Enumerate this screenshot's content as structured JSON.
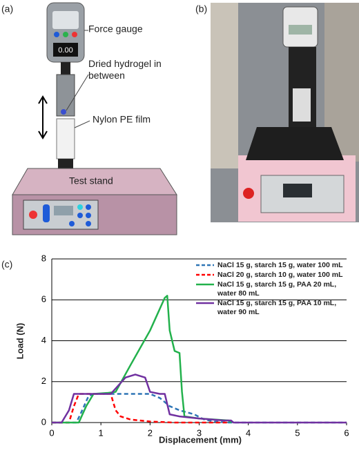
{
  "panels": {
    "a": "(a)",
    "b": "(b)",
    "c": "(c)"
  },
  "diagram": {
    "force_gauge": "Force gauge",
    "display": "0.00",
    "hydrogel": "Dried hydrogel in between",
    "film": "Nylon PE film",
    "stand": "Test stand"
  },
  "chart_data": {
    "type": "line",
    "x_label": "Displacement (mm)",
    "y_label": "Load (N)",
    "xlim": [
      0,
      6
    ],
    "ylim": [
      0,
      8
    ],
    "xticks": [
      0,
      1,
      2,
      3,
      4,
      5,
      6
    ],
    "yticks": [
      0,
      2,
      4,
      6,
      8
    ],
    "grid": true,
    "legend": "upper right",
    "series": [
      {
        "name": "NaCl 15 g, starch 15 g, water 100 mL",
        "color": "#2e75b6",
        "dashed": true,
        "x": [
          0,
          0.5,
          0.6,
          0.75,
          0.85,
          2.0,
          2.2,
          2.4,
          2.6,
          2.9,
          3.1,
          3.3,
          3.6,
          6
        ],
        "values": [
          0,
          0,
          0.5,
          1.3,
          1.4,
          1.4,
          1.2,
          0.8,
          0.6,
          0.4,
          0.15,
          0.05,
          0,
          0
        ]
      },
      {
        "name": "NaCl 20 g, starch 10 g, water 100 mL",
        "color": "#ff0000",
        "dashed": true,
        "x": [
          0,
          0.35,
          0.45,
          0.55,
          1.2,
          1.3,
          1.4,
          1.6,
          2.0,
          2.5,
          3.6
        ],
        "values": [
          0,
          0,
          0.8,
          1.4,
          1.4,
          0.6,
          0.3,
          0.15,
          0.05,
          0,
          0
        ]
      },
      {
        "name": "NaCl 15 g, starch 15 g, PAA 20 mL, water 80 mL",
        "color": "#22b14c",
        "dashed": false,
        "x": [
          0,
          0.55,
          0.7,
          0.85,
          1.15,
          1.3,
          1.6,
          2.0,
          2.3,
          2.35,
          2.4,
          2.5,
          2.6,
          2.65,
          2.7,
          3.0,
          3.6,
          3.65
        ],
        "values": [
          0,
          0,
          0.8,
          1.4,
          1.45,
          1.5,
          2.8,
          4.5,
          6.1,
          6.2,
          4.5,
          3.5,
          3.4,
          1.5,
          0.3,
          0.2,
          0.1,
          0
        ]
      },
      {
        "name": "NaCl 15 g, starch 15 g, PAA 10 mL, water 90 mL",
        "color": "#7030a0",
        "dashed": false,
        "x": [
          0,
          0.2,
          0.35,
          0.45,
          1.2,
          1.5,
          1.7,
          1.9,
          2.0,
          2.2,
          2.3,
          2.4,
          2.6,
          3.0,
          3.5,
          3.65,
          3.7,
          6
        ],
        "values": [
          0,
          0,
          0.6,
          1.4,
          1.4,
          2.2,
          2.35,
          2.2,
          1.5,
          1.4,
          1.4,
          0.4,
          0.3,
          0.2,
          0.1,
          0.1,
          0,
          0
        ]
      }
    ]
  }
}
